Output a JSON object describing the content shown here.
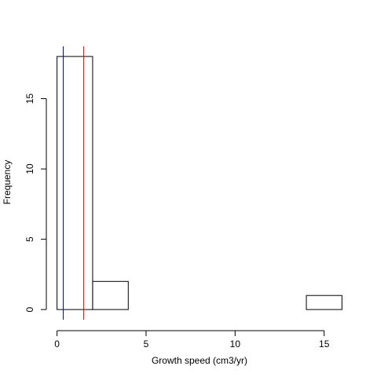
{
  "chart_data": {
    "type": "bar",
    "subtype": "histogram",
    "title": "",
    "xlabel": "Growth speed (cm3/yr)",
    "ylabel": "Frequency",
    "xlim": [
      -0.6,
      16.6
    ],
    "ylim": [
      -0.72,
      18.72
    ],
    "x_ticks": [
      0,
      5,
      10,
      15
    ],
    "y_ticks": [
      0,
      5,
      10,
      15
    ],
    "bins": [
      {
        "from": 0,
        "to": 2,
        "count": 18
      },
      {
        "from": 2,
        "to": 4,
        "count": 2
      },
      {
        "from": 4,
        "to": 6,
        "count": 0
      },
      {
        "from": 6,
        "to": 8,
        "count": 0
      },
      {
        "from": 8,
        "to": 10,
        "count": 0
      },
      {
        "from": 10,
        "to": 12,
        "count": 0
      },
      {
        "from": 12,
        "to": 14,
        "count": 0
      },
      {
        "from": 14,
        "to": 16,
        "count": 1
      }
    ],
    "reference_lines": [
      {
        "x": 0.35,
        "color": "#0000cc"
      },
      {
        "x": 1.5,
        "color": "#dd0000"
      }
    ],
    "grid": false
  }
}
